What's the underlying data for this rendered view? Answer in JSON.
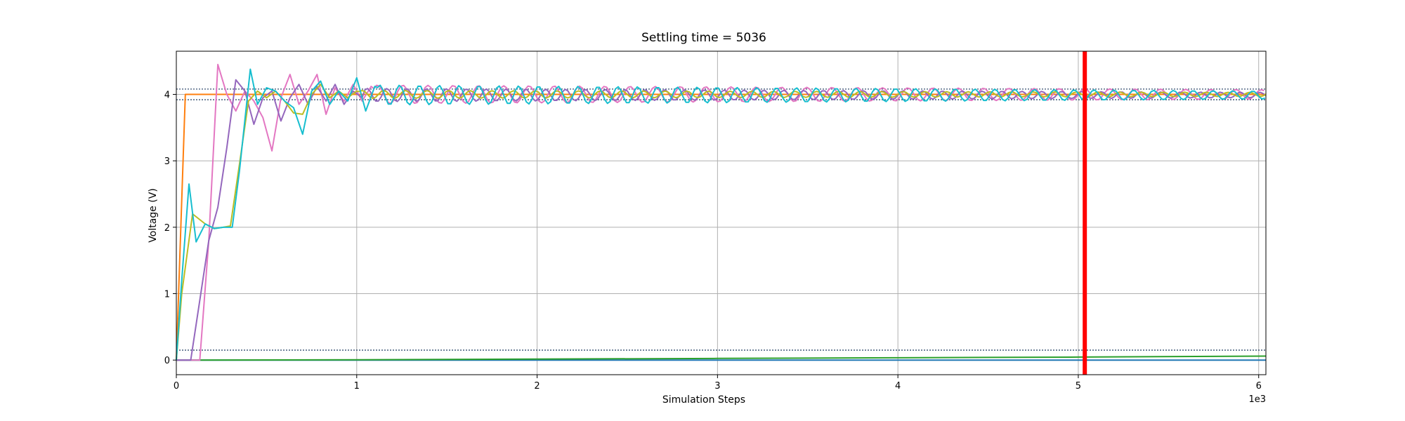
{
  "chart_data": {
    "type": "line",
    "title": "Settling time = 5036",
    "xlabel": "Simulation Steps",
    "ylabel": "Voltage (V)",
    "x_offset_text": "1e3",
    "xlim": [
      0,
      6040
    ],
    "ylim": [
      -0.22,
      4.65
    ],
    "x_ticks": [
      0,
      1000,
      2000,
      3000,
      4000,
      5000,
      6000
    ],
    "x_tick_labels": [
      "0",
      "1",
      "2",
      "3",
      "4",
      "5",
      "6"
    ],
    "y_ticks": [
      0,
      1,
      2,
      3,
      4
    ],
    "y_tick_labels": [
      "0",
      "1",
      "2",
      "3",
      "4"
    ],
    "grid": true,
    "settling_time": 5036,
    "threshold_lines": [
      4.08,
      3.92,
      0.15
    ],
    "colors": {
      "settling_line": "#ff0000",
      "threshold": "#1f3a5f",
      "grid": "#b0b0b0"
    },
    "series": [
      {
        "color": "#1f77b4",
        "x": [
          0,
          6040
        ],
        "y": [
          0,
          0
        ]
      },
      {
        "color": "#2ca02c",
        "x": [
          0,
          1000,
          2000,
          3000,
          4000,
          5000,
          6040
        ],
        "y": [
          0,
          0.005,
          0.015,
          0.025,
          0.035,
          0.045,
          0.06
        ]
      },
      {
        "color": "#ff7f0e",
        "x": [
          0,
          50,
          6040
        ],
        "y": [
          0,
          4.0,
          4.0
        ]
      },
      {
        "color": "#e377c2",
        "x": [
          0,
          130,
          180,
          230,
          280,
          330,
          380,
          430,
          480,
          530,
          580,
          630,
          680,
          730,
          780,
          830,
          880,
          930,
          980,
          1030,
          1080
        ],
        "y": [
          0,
          0,
          1.8,
          4.45,
          4.0,
          3.75,
          4.05,
          3.9,
          3.65,
          3.15,
          3.95,
          4.3,
          3.85,
          4.05,
          4.3,
          3.7,
          4.1,
          3.9,
          4.15,
          3.9,
          4.12
        ],
        "osc": {
          "start": 1080,
          "end": 6040,
          "center": 4.0,
          "amp0": 0.14,
          "amp1": 0.07,
          "period": 140
        }
      },
      {
        "color": "#9467bd",
        "x": [
          0,
          80,
          130,
          180,
          230,
          280,
          330,
          380,
          430,
          480,
          530,
          580,
          630,
          680,
          730,
          780,
          830,
          880,
          930,
          980,
          1030
        ],
        "y": [
          0,
          0,
          0.9,
          1.8,
          2.3,
          3.2,
          4.22,
          4.05,
          3.55,
          3.95,
          4.05,
          3.6,
          3.95,
          4.15,
          3.85,
          4.12,
          3.9,
          4.15,
          3.85,
          4.05,
          3.95
        ],
        "osc": {
          "start": 1030,
          "end": 6040,
          "center": 3.99,
          "amp0": 0.1,
          "amp1": 0.04,
          "period": 110
        }
      },
      {
        "color": "#bcbd22",
        "x": [
          0,
          30,
          90,
          160,
          210,
          260,
          300,
          350,
          400,
          450,
          500,
          550,
          600,
          650,
          700,
          750,
          800,
          850,
          900,
          950,
          1000
        ],
        "y": [
          0,
          1.0,
          2.2,
          2.05,
          1.98,
          2.0,
          2.02,
          2.95,
          3.9,
          4.05,
          3.95,
          4.05,
          3.9,
          3.72,
          3.7,
          4.0,
          4.15,
          3.95,
          4.05,
          3.95,
          4.05
        ],
        "osc": {
          "start": 1000,
          "end": 6040,
          "center": 4.0,
          "amp0": 0.06,
          "amp1": 0.03,
          "period": 120
        }
      },
      {
        "color": "#17becf",
        "x": [
          0,
          30,
          70,
          110,
          160,
          210,
          260,
          310,
          350,
          410,
          450,
          500,
          550,
          600,
          650,
          700,
          750,
          800,
          850,
          900,
          950,
          1000,
          1050,
          1100
        ],
        "y": [
          0,
          1.2,
          2.65,
          1.78,
          2.05,
          1.98,
          2.0,
          2.0,
          2.85,
          4.38,
          3.85,
          4.1,
          4.05,
          3.9,
          3.8,
          3.4,
          4.05,
          4.2,
          3.85,
          4.05,
          3.9,
          4.25,
          3.75,
          4.12
        ],
        "osc": {
          "start": 1100,
          "end": 6040,
          "center": 3.99,
          "amp0": 0.15,
          "amp1": 0.06,
          "period": 110
        }
      }
    ]
  }
}
